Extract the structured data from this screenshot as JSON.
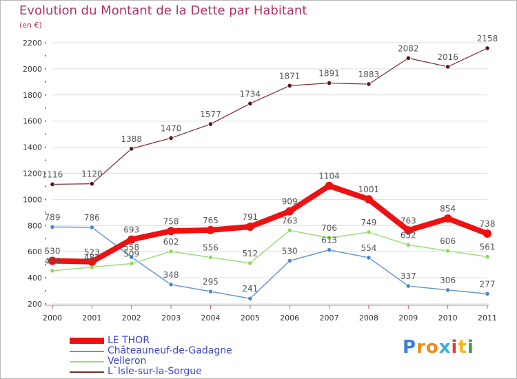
{
  "chart_data": {
    "type": "line",
    "title": "Evolution du Montant de la Dette par Habitant",
    "subtitle": "(en €)",
    "categories": [
      "2000",
      "2001",
      "2002",
      "2003",
      "2004",
      "2005",
      "2006",
      "2007",
      "2008",
      "2009",
      "2010",
      "2011"
    ],
    "ylim": [
      200,
      2200
    ],
    "yticks": [
      200,
      400,
      600,
      800,
      1000,
      1200,
      1400,
      1600,
      1800,
      2000,
      2200
    ],
    "grid": true,
    "legend_position": "bottom-left",
    "series": [
      {
        "name": "LE THOR",
        "color": "#ee1111",
        "point_color": "#ee1111",
        "values": [
          530,
          523,
          693,
          758,
          765,
          791,
          909,
          1104,
          1001,
          763,
          854,
          738
        ]
      },
      {
        "name": "Châteauneuf-de-Gadagne",
        "color": "#6699cc",
        "point_color": "#4a88cc",
        "values": [
          789,
          786,
          558,
          348,
          295,
          241,
          530,
          613,
          554,
          337,
          306,
          277
        ]
      },
      {
        "name": "Velleron",
        "color": "#99dd77",
        "point_color": "#88dd55",
        "values": [
          454,
          481,
          509,
          602,
          556,
          512,
          763,
          706,
          749,
          652,
          606,
          561
        ]
      },
      {
        "name": "L`Isle-sur-la-Sorgue",
        "color": "#7a2a2a",
        "point_color": "#5a1414",
        "values": [
          1116,
          1120,
          1388,
          1470,
          1577,
          1734,
          1871,
          1891,
          1883,
          2082,
          2016,
          2158
        ]
      }
    ],
    "colors": {
      "title": "#b0306a",
      "grid": "#dddddd",
      "axis_tick": "#e05050",
      "label": "#555555"
    }
  },
  "brand": {
    "letters": [
      "P",
      "r",
      "o",
      "x",
      "i",
      "t",
      "i"
    ],
    "colors": [
      "#3b7fd4",
      "#f08a1c",
      "#f08a1c",
      "#3bb0d4",
      "#e23c3c",
      "#f0b81c",
      "#3b9f4a"
    ]
  }
}
